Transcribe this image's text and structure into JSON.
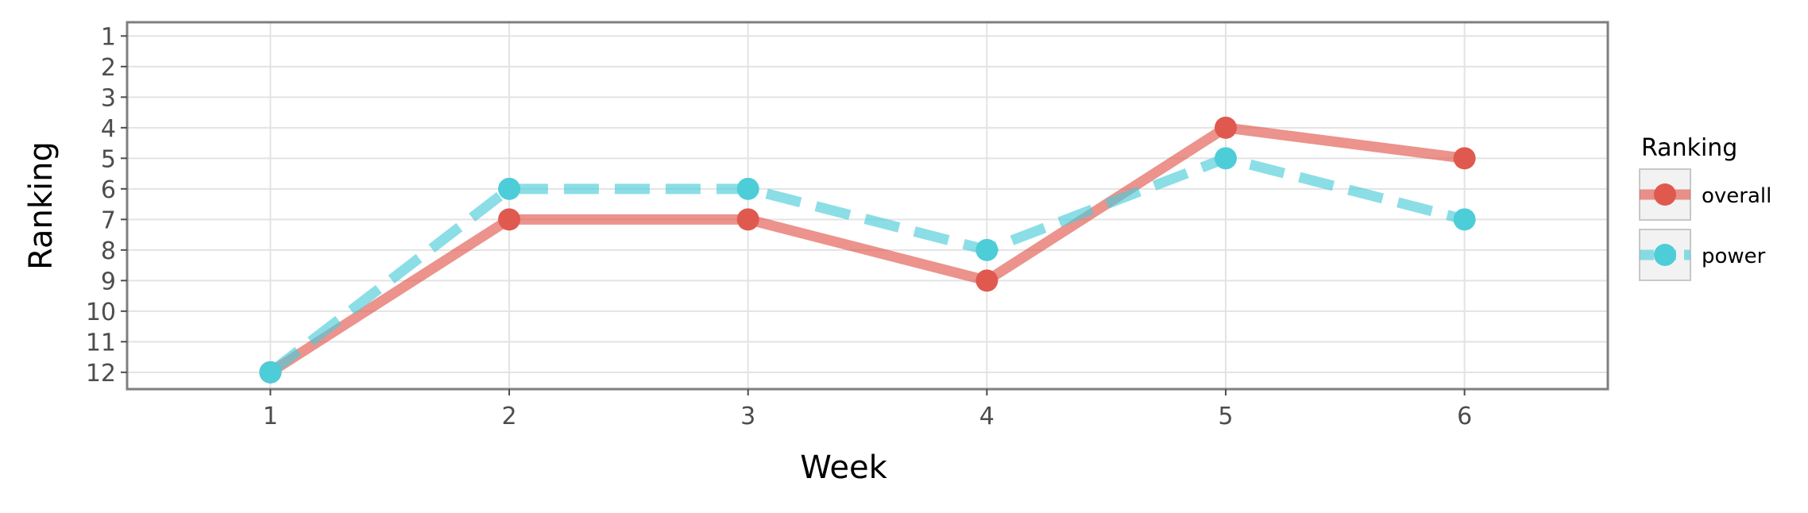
{
  "chart_data": {
    "type": "line",
    "title": "",
    "xlabel": "Week",
    "ylabel": "Ranking",
    "x": [
      1,
      2,
      3,
      4,
      5,
      6
    ],
    "x_ticks": [
      "1",
      "2",
      "3",
      "4",
      "5",
      "6"
    ],
    "y_ticks": [
      "1",
      "2",
      "3",
      "4",
      "5",
      "6",
      "7",
      "8",
      "9",
      "10",
      "11",
      "12"
    ],
    "xlim": [
      0.4,
      6.6
    ],
    "ylim": [
      12.55,
      0.55
    ],
    "y_reversed": true,
    "grid": true,
    "legend": {
      "title": "Ranking",
      "position": "right"
    },
    "series": [
      {
        "name": "overall",
        "values": [
          12,
          7,
          7,
          9,
          4,
          5
        ],
        "color": "#E0594F",
        "linestyle": "solid"
      },
      {
        "name": "power",
        "values": [
          12,
          6,
          6,
          8,
          5,
          7
        ],
        "color": "#4DCDD8",
        "linestyle": "dashed"
      }
    ]
  }
}
